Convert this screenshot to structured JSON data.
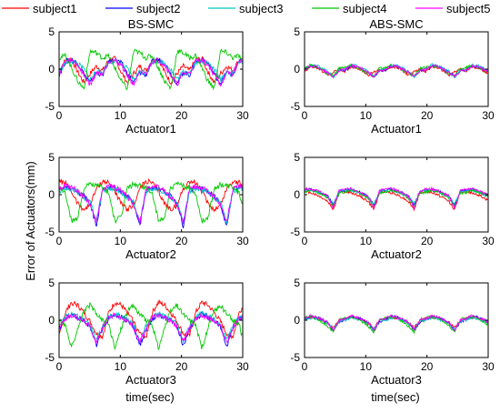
{
  "chart_data": {
    "type": "line",
    "ylabel": "Error of Actuators(mm)",
    "xlabel": "time(sec)",
    "legend": {
      "placement": "top",
      "entries": [
        {
          "name": "subject1",
          "color": "#ff0000"
        },
        {
          "name": "subject2",
          "color": "#0000ff"
        },
        {
          "name": "subject3",
          "color": "#00c8c8"
        },
        {
          "name": "subject4",
          "color": "#00c800"
        },
        {
          "name": "subject5",
          "color": "#ff00ff"
        }
      ]
    },
    "xlim": [
      0,
      30
    ],
    "ylim": [
      -5,
      5
    ],
    "xticks": [
      0,
      10,
      20,
      30
    ],
    "yticks": [
      -5,
      0,
      5
    ],
    "columns": [
      "BS-SMC",
      "ABS-SMC"
    ],
    "rows": [
      "Actuator1",
      "Actuator2",
      "Actuator3"
    ],
    "panels": [
      {
        "controller": "BS-SMC",
        "actuator": "Actuator1",
        "period": 7.1,
        "series": [
          {
            "name": "subject1",
            "x": [
              0,
              1,
              2,
              3,
              4,
              5,
              6,
              7
            ],
            "y": [
              -0.2,
              1.2,
              1.4,
              -0.4,
              -1.8,
              -0.6,
              0.4,
              -0.2
            ]
          },
          {
            "name": "subject2",
            "x": [
              0,
              1,
              2,
              3,
              4,
              5,
              6,
              7
            ],
            "y": [
              -0.8,
              1.0,
              1.3,
              0.8,
              -0.6,
              -1.9,
              -0.4,
              -0.8
            ]
          },
          {
            "name": "subject3",
            "x": [
              0,
              1,
              2,
              3,
              4,
              5,
              6,
              7
            ],
            "y": [
              -0.5,
              0.9,
              1.1,
              0.7,
              0.0,
              -1.4,
              -0.3,
              -0.5
            ]
          },
          {
            "name": "subject4",
            "x": [
              0,
              1,
              2,
              3,
              4,
              5,
              6,
              7
            ],
            "y": [
              1.5,
              1.8,
              0.2,
              -1.6,
              -2.6,
              2.4,
              2.2,
              1.5
            ]
          },
          {
            "name": "subject5",
            "x": [
              0,
              1,
              2,
              3,
              4,
              5,
              6,
              7
            ],
            "y": [
              -0.6,
              1.1,
              1.2,
              0.6,
              -0.8,
              -2.1,
              -0.5,
              -0.6
            ]
          }
        ]
      },
      {
        "controller": "ABS-SMC",
        "actuator": "Actuator1",
        "period": 6.6,
        "series": [
          {
            "name": "subject1",
            "x": [
              0,
              1,
              2,
              3,
              4,
              5,
              6,
              7
            ],
            "y": [
              -0.3,
              0.3,
              0.2,
              -0.2,
              -0.8,
              -0.4,
              0.0,
              -0.3
            ]
          },
          {
            "name": "subject2",
            "x": [
              0,
              1,
              2,
              3,
              4,
              5,
              6,
              7
            ],
            "y": [
              -0.1,
              0.4,
              0.3,
              0.0,
              -0.4,
              -1.0,
              -0.2,
              -0.1
            ]
          },
          {
            "name": "subject3",
            "x": [
              0,
              1,
              2,
              3,
              4,
              5,
              6,
              7
            ],
            "y": [
              0.0,
              0.6,
              0.5,
              0.1,
              -0.3,
              -1.1,
              -0.1,
              0.0
            ]
          },
          {
            "name": "subject4",
            "x": [
              0,
              1,
              2,
              3,
              4,
              5,
              6,
              7
            ],
            "y": [
              0.2,
              0.5,
              0.3,
              -0.1,
              -0.6,
              -0.9,
              0.1,
              0.2
            ]
          },
          {
            "name": "subject5",
            "x": [
              0,
              1,
              2,
              3,
              4,
              5,
              6,
              7
            ],
            "y": [
              -0.1,
              0.4,
              0.4,
              0.0,
              -0.5,
              -1.0,
              -0.2,
              -0.1
            ]
          }
        ]
      },
      {
        "controller": "BS-SMC",
        "actuator": "Actuator2",
        "period": 7.1,
        "series": [
          {
            "name": "subject1",
            "x": [
              0,
              1,
              2,
              3,
              4,
              5,
              6,
              7
            ],
            "y": [
              1.8,
              1.6,
              0.4,
              -1.2,
              -2.0,
              -1.4,
              0.8,
              1.8
            ]
          },
          {
            "name": "subject2",
            "x": [
              0,
              1,
              2,
              3,
              4,
              5,
              6,
              7
            ],
            "y": [
              0.6,
              1.0,
              0.8,
              0.4,
              -0.2,
              -1.2,
              -4.2,
              0.6
            ]
          },
          {
            "name": "subject3",
            "x": [
              0,
              1,
              2,
              3,
              4,
              5,
              6,
              7
            ],
            "y": [
              0.4,
              0.8,
              0.7,
              0.3,
              -0.4,
              -1.0,
              -3.6,
              0.4
            ]
          },
          {
            "name": "subject4",
            "x": [
              0,
              1,
              2,
              3,
              4,
              5,
              6,
              7
            ],
            "y": [
              1.0,
              0.2,
              -3.6,
              -3.0,
              0.9,
              1.4,
              1.2,
              1.0
            ]
          },
          {
            "name": "subject5",
            "x": [
              0,
              1,
              2,
              3,
              4,
              5,
              6,
              7
            ],
            "y": [
              0.8,
              1.2,
              1.0,
              0.5,
              -0.3,
              -1.3,
              -3.8,
              0.8
            ]
          }
        ]
      },
      {
        "controller": "ABS-SMC",
        "actuator": "Actuator2",
        "period": 6.6,
        "series": [
          {
            "name": "subject1",
            "x": [
              0,
              1,
              2,
              3,
              4,
              5,
              6,
              7
            ],
            "y": [
              0.4,
              0.3,
              0.0,
              -0.4,
              -0.9,
              -2.0,
              0.3,
              0.4
            ]
          },
          {
            "name": "subject2",
            "x": [
              0,
              1,
              2,
              3,
              4,
              5,
              6,
              7
            ],
            "y": [
              0.6,
              0.7,
              0.5,
              0.2,
              -0.2,
              -1.4,
              0.5,
              0.6
            ]
          },
          {
            "name": "subject3",
            "x": [
              0,
              1,
              2,
              3,
              4,
              5,
              6,
              7
            ],
            "y": [
              0.5,
              0.6,
              0.4,
              0.0,
              -0.3,
              -1.2,
              0.4,
              0.5
            ]
          },
          {
            "name": "subject4",
            "x": [
              0,
              1,
              2,
              3,
              4,
              5,
              6,
              7
            ],
            "y": [
              0.3,
              0.6,
              0.4,
              0.1,
              -0.5,
              -1.6,
              0.2,
              0.3
            ]
          },
          {
            "name": "subject5",
            "x": [
              0,
              1,
              2,
              3,
              4,
              5,
              6,
              7
            ],
            "y": [
              0.7,
              0.8,
              0.6,
              0.2,
              -0.2,
              -1.8,
              0.6,
              0.7
            ]
          }
        ]
      },
      {
        "controller": "BS-SMC",
        "actuator": "Actuator3",
        "period": 7.1,
        "series": [
          {
            "name": "subject1",
            "x": [
              0,
              1,
              2,
              3,
              4,
              5,
              6,
              7
            ],
            "y": [
              -2.2,
              1.0,
              2.4,
              2.0,
              1.0,
              -0.2,
              -1.8,
              -2.2
            ]
          },
          {
            "name": "subject2",
            "x": [
              0,
              1,
              2,
              3,
              4,
              5,
              6,
              7
            ],
            "y": [
              -1.2,
              0.2,
              0.8,
              0.4,
              0.0,
              -0.8,
              -3.4,
              -1.2
            ]
          },
          {
            "name": "subject3",
            "x": [
              0,
              1,
              2,
              3,
              4,
              5,
              6,
              7
            ],
            "y": [
              -0.8,
              0.4,
              0.9,
              0.5,
              0.1,
              -0.6,
              -2.8,
              -0.8
            ]
          },
          {
            "name": "subject4",
            "x": [
              0,
              1,
              2,
              3,
              4,
              5,
              6,
              7
            ],
            "y": [
              0.0,
              -0.6,
              -3.8,
              -1.0,
              1.2,
              2.0,
              0.8,
              0.0
            ]
          },
          {
            "name": "subject5",
            "x": [
              0,
              1,
              2,
              3,
              4,
              5,
              6,
              7
            ],
            "y": [
              -1.0,
              0.3,
              0.7,
              0.3,
              -0.1,
              -0.9,
              -3.0,
              -1.0
            ]
          }
        ]
      },
      {
        "controller": "ABS-SMC",
        "actuator": "Actuator3",
        "period": 6.6,
        "series": [
          {
            "name": "subject1",
            "x": [
              0,
              1,
              2,
              3,
              4,
              5,
              6,
              7
            ],
            "y": [
              0.2,
              0.4,
              0.3,
              0.0,
              -0.4,
              -1.0,
              0.0,
              0.2
            ]
          },
          {
            "name": "subject2",
            "x": [
              0,
              1,
              2,
              3,
              4,
              5,
              6,
              7
            ],
            "y": [
              0.1,
              0.5,
              0.4,
              0.1,
              -0.3,
              -1.4,
              -0.2,
              0.1
            ]
          },
          {
            "name": "subject3",
            "x": [
              0,
              1,
              2,
              3,
              4,
              5,
              6,
              7
            ],
            "y": [
              0.0,
              0.3,
              0.2,
              -0.1,
              -0.4,
              -1.2,
              -0.1,
              0.0
            ]
          },
          {
            "name": "subject4",
            "x": [
              0,
              1,
              2,
              3,
              4,
              5,
              6,
              7
            ],
            "y": [
              0.3,
              0.5,
              0.3,
              -0.2,
              -0.8,
              -1.6,
              0.1,
              0.3
            ]
          },
          {
            "name": "subject5",
            "x": [
              0,
              1,
              2,
              3,
              4,
              5,
              6,
              7
            ],
            "y": [
              0.2,
              0.6,
              0.4,
              0.1,
              -0.3,
              -1.3,
              0.0,
              0.2
            ]
          }
        ]
      }
    ]
  }
}
